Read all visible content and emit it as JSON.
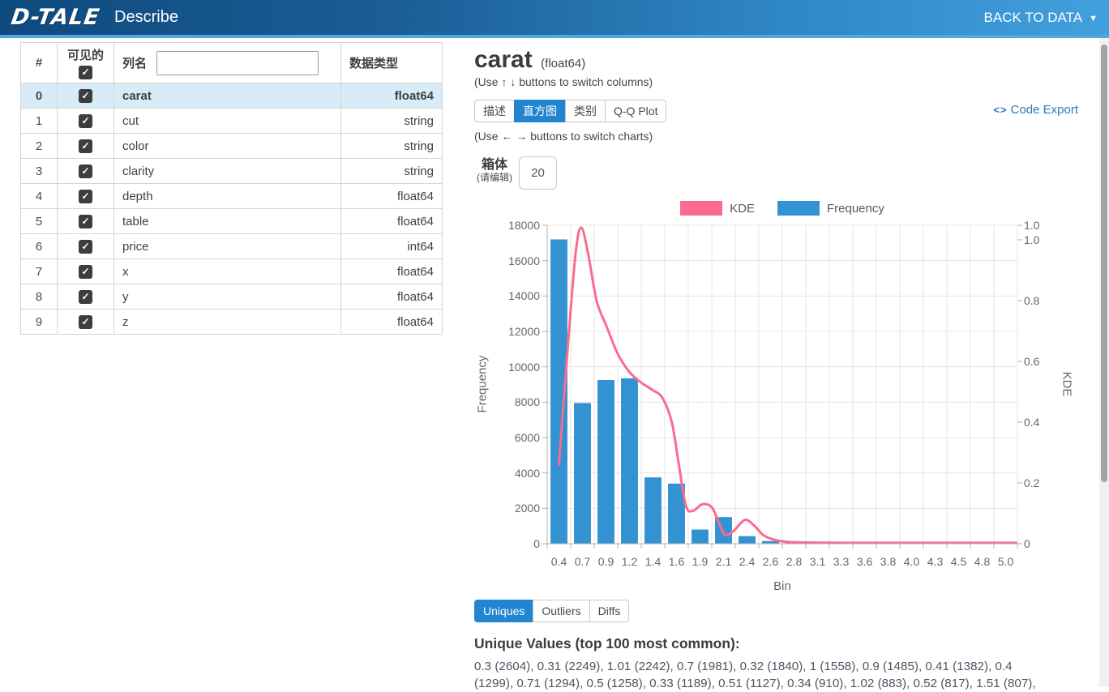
{
  "nav": {
    "logo": "D-TALE",
    "title": "Describe",
    "back_to_data": "BACK TO DATA",
    "caret": "▼"
  },
  "column_table": {
    "headers": {
      "index": "#",
      "visible": "可见的",
      "name": "列名",
      "dtype": "数据类型"
    },
    "search_value": "",
    "check_glyph": "✓",
    "rows": [
      {
        "index": "0",
        "name": "carat",
        "dtype": "float64",
        "checked": true,
        "selected": true
      },
      {
        "index": "1",
        "name": "cut",
        "dtype": "string",
        "checked": true,
        "selected": false
      },
      {
        "index": "2",
        "name": "color",
        "dtype": "string",
        "checked": true,
        "selected": false
      },
      {
        "index": "3",
        "name": "clarity",
        "dtype": "string",
        "checked": true,
        "selected": false
      },
      {
        "index": "4",
        "name": "depth",
        "dtype": "float64",
        "checked": true,
        "selected": false
      },
      {
        "index": "5",
        "name": "table",
        "dtype": "float64",
        "checked": true,
        "selected": false
      },
      {
        "index": "6",
        "name": "price",
        "dtype": "int64",
        "checked": true,
        "selected": false
      },
      {
        "index": "7",
        "name": "x",
        "dtype": "float64",
        "checked": true,
        "selected": false
      },
      {
        "index": "8",
        "name": "y",
        "dtype": "float64",
        "checked": true,
        "selected": false
      },
      {
        "index": "9",
        "name": "z",
        "dtype": "float64",
        "checked": true,
        "selected": false
      }
    ]
  },
  "describe": {
    "title": "carat",
    "title_dtype": "(float64)",
    "columns_hint": "(Use ↑ ↓ buttons to switch columns)",
    "charts_hint": "(Use ← → buttons to switch charts)",
    "chart_tabs": [
      {
        "key": "describe",
        "label": "描述",
        "active": false
      },
      {
        "key": "histogram",
        "label": "直方图",
        "active": true
      },
      {
        "key": "categories",
        "label": "类别",
        "active": false
      },
      {
        "key": "qq-plot",
        "label": "Q-Q Plot",
        "active": false
      }
    ],
    "code_export": {
      "icon": "<>",
      "label": "Code Export"
    },
    "bins": {
      "label": "箱体",
      "sublabel": "(请编辑)",
      "value": "20"
    }
  },
  "chart_data": {
    "type": "bar",
    "title": "",
    "xlabel": "Bin",
    "ylabel_left": "Frequency",
    "ylabel_right": "KDE",
    "legend_position": "top",
    "grid": true,
    "categories": [
      "0.4",
      "0.7",
      "0.9",
      "1.2",
      "1.4",
      "1.6",
      "1.9",
      "2.1",
      "2.4",
      "2.6",
      "2.8",
      "3.1",
      "3.3",
      "3.6",
      "3.8",
      "4.0",
      "4.3",
      "4.5",
      "4.8",
      "5.0"
    ],
    "series": [
      {
        "name": "Frequency",
        "type": "bar",
        "color": "#3292d2",
        "values": [
          17200,
          7950,
          9250,
          9350,
          3750,
          3400,
          800,
          1500,
          430,
          150,
          60,
          25,
          10,
          6,
          4,
          3,
          2,
          2,
          1,
          1
        ]
      },
      {
        "name": "KDE",
        "type": "line",
        "color": "#fb6b8f",
        "points": [
          [
            0,
            0.26
          ],
          [
            0.35,
            0.62
          ],
          [
            0.7,
            0.95
          ],
          [
            0.95,
            1.04
          ],
          [
            1.25,
            0.95
          ],
          [
            1.6,
            0.8
          ],
          [
            2,
            0.72
          ],
          [
            2.5,
            0.625
          ],
          [
            3,
            0.565
          ],
          [
            3.5,
            0.53
          ],
          [
            4,
            0.505
          ],
          [
            4.4,
            0.48
          ],
          [
            4.8,
            0.4
          ],
          [
            5.1,
            0.26
          ],
          [
            5.4,
            0.125
          ],
          [
            5.7,
            0.108
          ],
          [
            6.1,
            0.13
          ],
          [
            6.5,
            0.12
          ],
          [
            6.8,
            0.07
          ],
          [
            7.05,
            0.03
          ],
          [
            7.4,
            0.04
          ],
          [
            7.9,
            0.078
          ],
          [
            8.3,
            0.06
          ],
          [
            8.7,
            0.028
          ],
          [
            9.2,
            0.012
          ],
          [
            9.7,
            0.006
          ],
          [
            10.5,
            0.004
          ],
          [
            12,
            0.003
          ],
          [
            14,
            0.003
          ],
          [
            16,
            0.003
          ],
          [
            18,
            0.003
          ],
          [
            19.45,
            0.003
          ]
        ]
      }
    ],
    "left_axis": {
      "min": 0,
      "max": 18000,
      "step": 2000
    },
    "right_axis": {
      "axis_max": 1.048,
      "edge_label": "1.0",
      "ticks": [
        {
          "label": "1.0",
          "value": 1.0
        },
        {
          "label": "0.8",
          "value": 0.8
        },
        {
          "label": "0.6",
          "value": 0.6
        },
        {
          "label": "0.4",
          "value": 0.4
        },
        {
          "label": "0.2",
          "value": 0.2
        },
        {
          "label": "0",
          "value": 0
        }
      ]
    }
  },
  "uniques": {
    "tabs": [
      {
        "key": "uniques",
        "label": "Uniques",
        "active": true
      },
      {
        "key": "outliers",
        "label": "Outliers",
        "active": false
      },
      {
        "key": "diffs",
        "label": "Diffs",
        "active": false
      }
    ],
    "heading": "Unique Values (top 100 most common):",
    "values_text": "0.3 (2604), 0.31 (2249), 1.01 (2242), 0.7 (1981), 0.32 (1840), 1 (1558), 0.9 (1485), 0.41 (1382), 0.4 (1299), 0.71 (1294), 0.5 (1258), 0.33 (1189), 0.51 (1127), 0.34 (910), 1.02 (883), 0.52 (817), 1.51 (807),"
  }
}
